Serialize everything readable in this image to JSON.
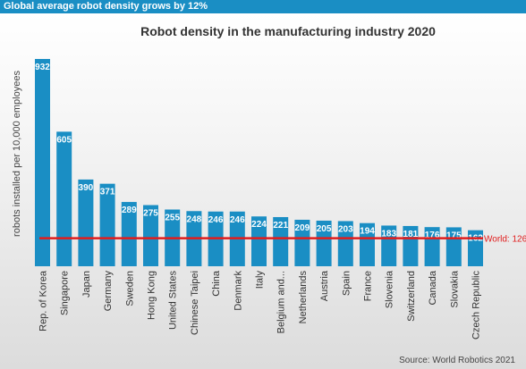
{
  "banner": {
    "text": "Global average robot density grows by 12%"
  },
  "source": "Source: World Robotics 2021",
  "chart_data": {
    "type": "bar",
    "title": "Robot density in the manufacturing industry 2020",
    "ylabel": "robots installed per 10,000 employees",
    "xlabel": "",
    "categories": [
      "Rep. of Korea",
      "Singapore",
      "Japan",
      "Germany",
      "Sweden",
      "Hong Kong",
      "United States",
      "Chinese Taipei",
      "China",
      "Denmark",
      "Italy",
      "Belgium and...",
      "Netherlands",
      "Austria",
      "Spain",
      "France",
      "Slovenia",
      "Switzerland",
      "Canada",
      "Slovakia",
      "Czech Republic"
    ],
    "values": [
      932,
      605,
      390,
      371,
      289,
      275,
      255,
      248,
      246,
      246,
      224,
      221,
      209,
      205,
      203,
      194,
      183,
      181,
      176,
      175,
      162
    ],
    "reference_line": {
      "label": "World: 126",
      "value": 126
    },
    "ylim": [
      0,
      932
    ],
    "grid": false,
    "legend": "none",
    "colors": {
      "bar": "#1a8ec4",
      "reference": "#e11c1c",
      "banner": "#1a8ec4"
    }
  }
}
